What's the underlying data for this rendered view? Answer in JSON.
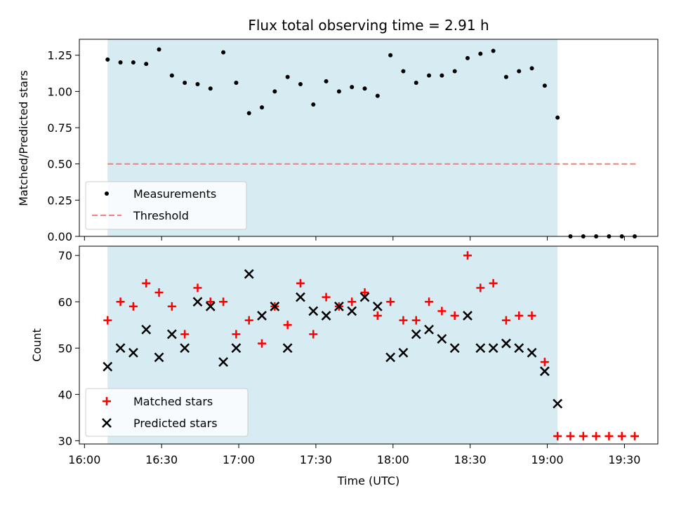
{
  "chart_data": [
    {
      "type": "scatter",
      "title": "Flux total observing time = 2.91 h",
      "xlabel": "",
      "ylabel": "Matched/Predicted stars",
      "xlim": [
        "15:58",
        "19:43"
      ],
      "ylim": [
        0,
        1.36
      ],
      "yticks": [
        "0.00",
        "0.25",
        "0.50",
        "0.75",
        "1.00",
        "1.25"
      ],
      "shaded_range": [
        "16:09",
        "19:04"
      ],
      "shade_color": "#add8e6",
      "threshold": {
        "name": "Threshold",
        "value": 0.5,
        "x_range": [
          "16:09",
          "19:35"
        ],
        "color": "#f08080"
      },
      "legend": {
        "placement": "lower-left",
        "entries": [
          "Measurements",
          "Threshold"
        ]
      },
      "series": [
        {
          "name": "Measurements",
          "color": "#000000",
          "x": [
            "16:09",
            "16:14",
            "16:19",
            "16:24",
            "16:29",
            "16:34",
            "16:39",
            "16:44",
            "16:49",
            "16:54",
            "16:59",
            "17:04",
            "17:09",
            "17:14",
            "17:19",
            "17:24",
            "17:29",
            "17:34",
            "17:39",
            "17:44",
            "17:49",
            "17:54",
            "17:59",
            "18:04",
            "18:09",
            "18:14",
            "18:19",
            "18:24",
            "18:29",
            "18:34",
            "18:39",
            "18:44",
            "18:49",
            "18:54",
            "18:59",
            "19:04",
            "19:09",
            "19:14",
            "19:19",
            "19:24",
            "19:29",
            "19:34"
          ],
          "y": [
            1.22,
            1.2,
            1.2,
            1.19,
            1.29,
            1.11,
            1.06,
            1.05,
            1.02,
            1.27,
            1.06,
            0.85,
            0.89,
            1.0,
            1.1,
            1.05,
            0.91,
            1.07,
            1.0,
            1.03,
            1.02,
            0.97,
            1.25,
            1.14,
            1.06,
            1.11,
            1.11,
            1.14,
            1.23,
            1.26,
            1.28,
            1.1,
            1.14,
            1.16,
            1.04,
            0.82,
            0.0,
            0.0,
            0.0,
            0.0,
            0.0,
            0.0
          ]
        }
      ]
    },
    {
      "type": "scatter",
      "title": "",
      "xlabel": "Time (UTC)",
      "ylabel": "Count",
      "xlim": [
        "15:58",
        "19:43"
      ],
      "ylim": [
        29.3,
        72
      ],
      "yticks": [
        "30",
        "40",
        "50",
        "60",
        "70"
      ],
      "xticks": [
        "16:00",
        "16:30",
        "17:00",
        "17:30",
        "18:00",
        "18:30",
        "19:00",
        "19:30"
      ],
      "shaded_range": [
        "16:09",
        "19:04"
      ],
      "shade_color": "#add8e6",
      "legend": {
        "placement": "lower-left",
        "entries": [
          "Matched stars",
          "Predicted stars"
        ]
      },
      "series": [
        {
          "name": "Matched stars",
          "marker": "plus",
          "color": "#ff0000",
          "x": [
            "16:09",
            "16:14",
            "16:19",
            "16:24",
            "16:29",
            "16:34",
            "16:39",
            "16:44",
            "16:49",
            "16:54",
            "16:59",
            "17:04",
            "17:09",
            "17:14",
            "17:19",
            "17:24",
            "17:29",
            "17:34",
            "17:39",
            "17:44",
            "17:49",
            "17:54",
            "17:59",
            "18:04",
            "18:09",
            "18:14",
            "18:19",
            "18:24",
            "18:29",
            "18:34",
            "18:39",
            "18:44",
            "18:49",
            "18:54",
            "18:59",
            "19:04",
            "19:09",
            "19:14",
            "19:19",
            "19:24",
            "19:29",
            "19:34"
          ],
          "y": [
            56,
            60,
            59,
            64,
            62,
            59,
            53,
            63,
            60,
            60,
            53,
            56,
            51,
            59,
            55,
            64,
            53,
            61,
            59,
            60,
            62,
            57,
            60,
            56,
            56,
            60,
            58,
            57,
            70,
            63,
            64,
            56,
            57,
            57,
            47,
            31,
            31,
            31,
            31,
            31,
            31,
            31
          ]
        },
        {
          "name": "Predicted stars",
          "marker": "x",
          "color": "#000000",
          "x": [
            "16:09",
            "16:14",
            "16:19",
            "16:24",
            "16:29",
            "16:34",
            "16:39",
            "16:44",
            "16:49",
            "16:54",
            "16:59",
            "17:04",
            "17:09",
            "17:14",
            "17:19",
            "17:24",
            "17:29",
            "17:34",
            "17:39",
            "17:44",
            "17:49",
            "17:54",
            "17:59",
            "18:04",
            "18:09",
            "18:14",
            "18:19",
            "18:24",
            "18:29",
            "18:34",
            "18:39",
            "18:44",
            "18:49",
            "18:54",
            "18:59",
            "19:04"
          ],
          "y": [
            46,
            50,
            49,
            54,
            48,
            53,
            50,
            60,
            59,
            47,
            50,
            66,
            57,
            59,
            50,
            61,
            58,
            57,
            59,
            58,
            61,
            59,
            48,
            49,
            53,
            54,
            52,
            50,
            57,
            50,
            50,
            51,
            50,
            49,
            45,
            38
          ]
        }
      ]
    }
  ]
}
